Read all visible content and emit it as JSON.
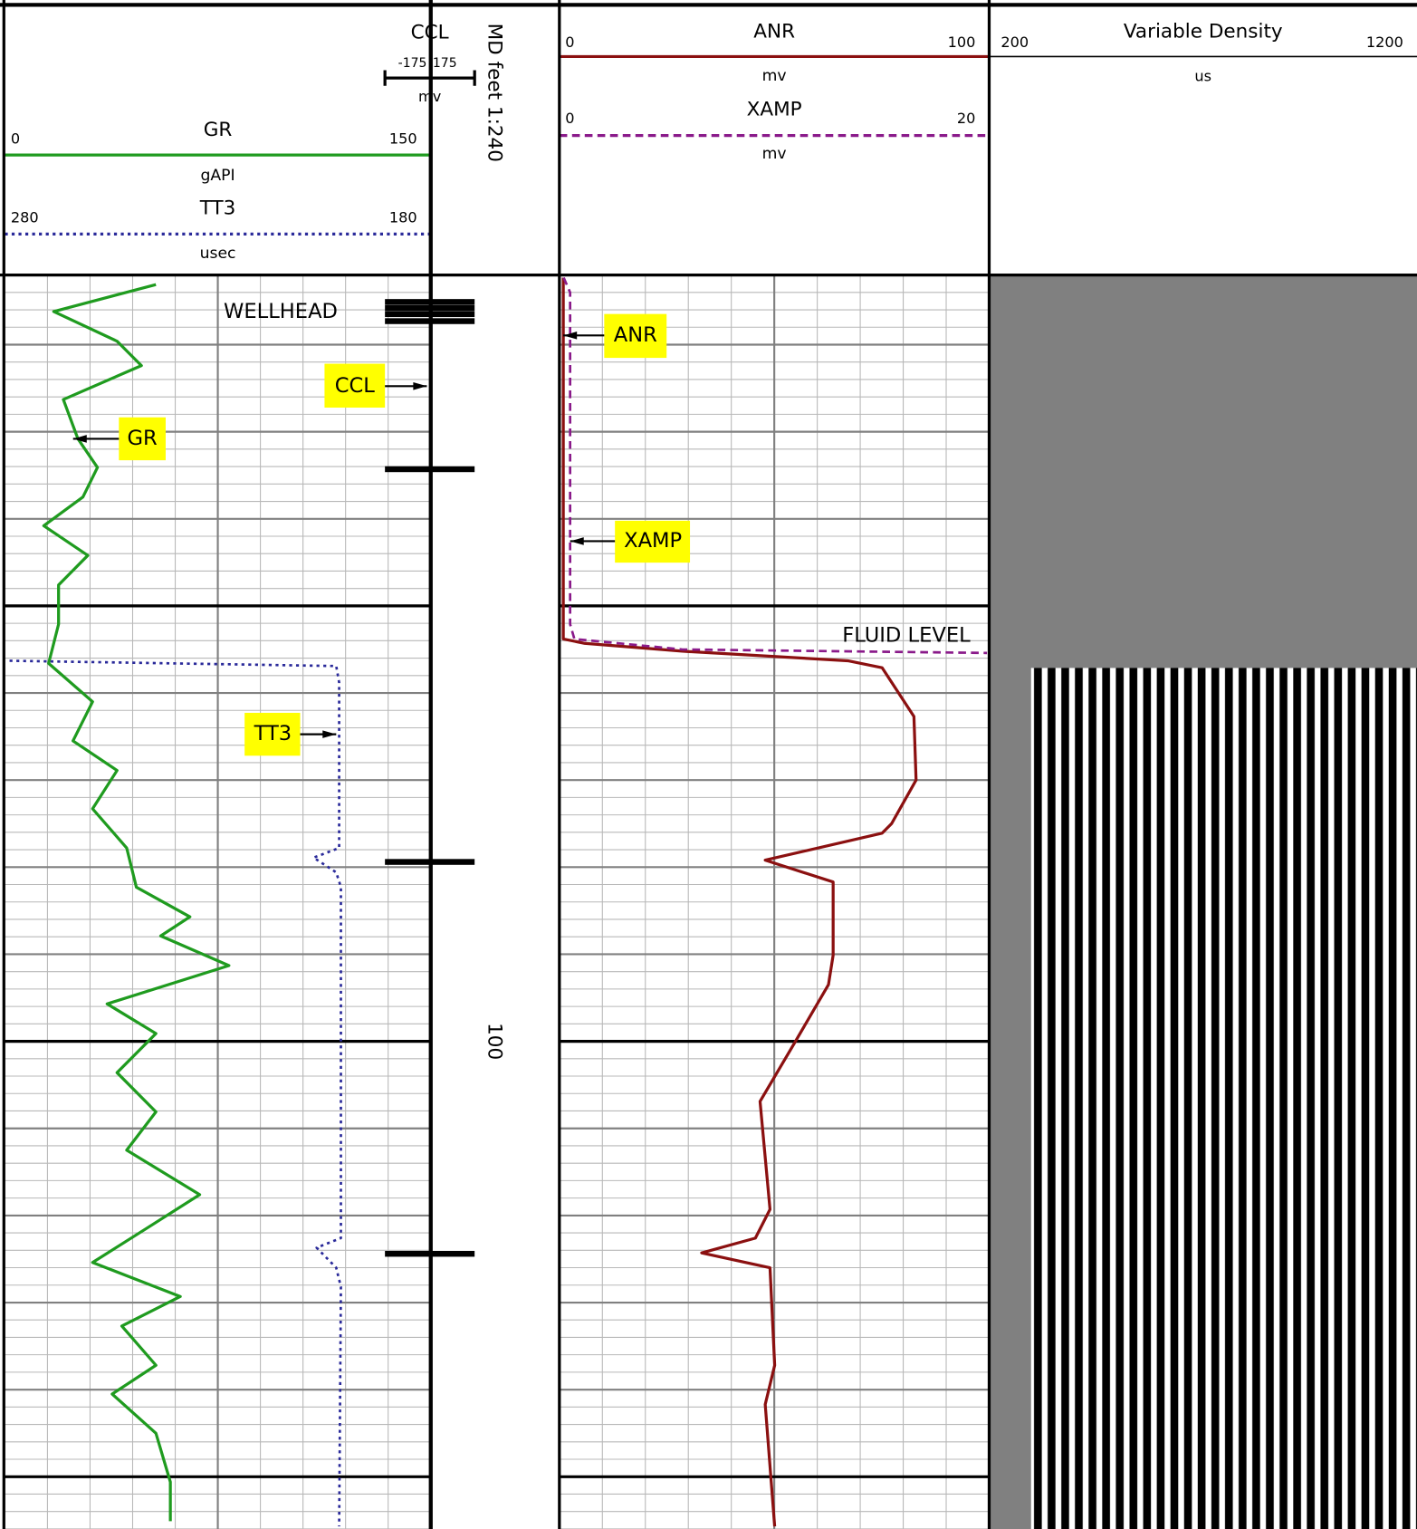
{
  "depth": {
    "label": "MD feet 1:240",
    "ylim": [
      12,
      156
    ],
    "yticks": [
      100
    ],
    "grid_major": [
      50,
      100,
      150
    ],
    "grid_minor": [
      20,
      30,
      40,
      60,
      70,
      80,
      90,
      110,
      120,
      130,
      140
    ]
  },
  "annotations": [
    "WELLHEAD",
    "CCL",
    "GR",
    "ANR",
    "XAMP",
    "TT3",
    "FLUID LEVEL"
  ],
  "chart_data": [
    {
      "type": "line",
      "series": [
        {
          "name": "GR",
          "unit": "gAPI",
          "color": "#1f9b1f",
          "line_style": "solid",
          "xlim": [
            0,
            150
          ],
          "depth": [
            13.1,
            16.2,
            19.6,
            22.4,
            26.3,
            30.8,
            34.1,
            37.5,
            40.8,
            44.2,
            47.6,
            52.1,
            56.6,
            61.0,
            65.5,
            68.9,
            73.3,
            77.8,
            82.3,
            85.7,
            87.9,
            91.3,
            95.7,
            99.1,
            103.6,
            108.1,
            112.5,
            117.6,
            121.5,
            125.4,
            129.3,
            132.7,
            137.2,
            140.5,
            145.0,
            150.6,
            155.1
          ],
          "values": [
            53.2,
            17.2,
            39.5,
            48.1,
            20.6,
            25.7,
            32.6,
            27.5,
            13.7,
            29.2,
            18.9,
            18.9,
            15.4,
            30.9,
            24.0,
            39.5,
            30.9,
            42.9,
            46.3,
            65.2,
            54.9,
            78.9,
            36.0,
            53.2,
            39.5,
            53.2,
            42.9,
            68.6,
            49.8,
            30.9,
            61.8,
            41.2,
            53.2,
            37.8,
            53.2,
            58.3,
            58.3
          ]
        },
        {
          "name": "TT3",
          "unit": "usec",
          "color": "#2a2a9a",
          "line_style": "dotted",
          "xlim": [
            280,
            180
          ],
          "depth": [
            56.3,
            56.9,
            58.8,
            77.8,
            78.9,
            80.6,
            82.3,
            122.6,
            123.7,
            126.0,
            128.2,
            155.7
          ],
          "values": [
            278.9,
            202.2,
            201.5,
            201.5,
            207.5,
            202.2,
            201.1,
            201.1,
            206.8,
            202.2,
            201.1,
            201.5
          ]
        }
      ]
    },
    {
      "type": "bar",
      "series": [
        {
          "name": "CCL",
          "unit": "mv",
          "color": "#000000",
          "xlim": [
            -175,
            175
          ],
          "depth": [
            15.1,
            15.8,
            16.5,
            17.3,
            34.3,
            79.4,
            124.4
          ],
          "values": [
            175,
            175,
            175,
            175,
            175,
            175,
            175
          ]
        }
      ]
    },
    {
      "type": "line",
      "series": [
        {
          "name": "ANR",
          "unit": "mv",
          "color": "#8b1010",
          "line_style": "solid",
          "xlim": [
            0,
            100
          ],
          "depth": [
            12.3,
            53.8,
            54.3,
            55.2,
            56.3,
            57.1,
            62.7,
            70.0,
            75.0,
            76.1,
            79.2,
            81.7,
            90.1,
            93.5,
            100.2,
            106.9,
            119.3,
            122.6,
            124.3,
            126.0,
            137.2,
            141.7,
            155.7
          ],
          "values": [
            0.9,
            0.9,
            5.9,
            28.6,
            67.1,
            75.1,
            82.5,
            83.0,
            77.3,
            75.1,
            47.9,
            63.7,
            63.7,
            62.6,
            54.7,
            46.7,
            49.0,
            45.6,
            33.1,
            49.0,
            50.1,
            47.9,
            50.1
          ]
        },
        {
          "name": "XAMP",
          "unit": "mv",
          "color": "#8a1a8a",
          "line_style": "dashed",
          "xlim": [
            0,
            20
          ],
          "depth": [
            12.3,
            14.0,
            52.1,
            53.8,
            55.0,
            55.4
          ],
          "values": [
            0.2,
            0.5,
            0.5,
            0.7,
            5.7,
            19.9
          ]
        }
      ]
    },
    {
      "type": "image",
      "title": "Variable Density",
      "unit": "us",
      "xlim": [
        200,
        1200
      ]
    }
  ]
}
